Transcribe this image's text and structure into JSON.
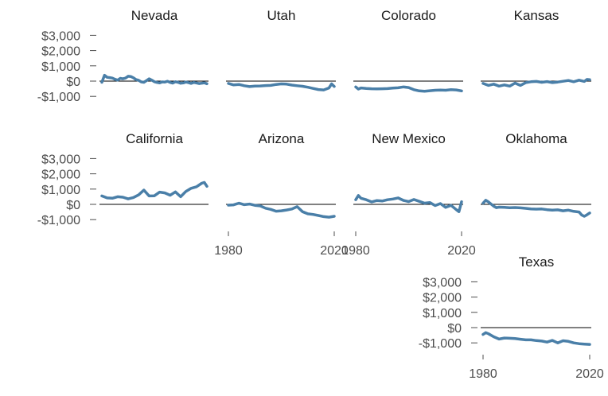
{
  "chart_data": {
    "type": "line",
    "layout": "small-multiples",
    "y_tick_labels": [
      "$3,000",
      "$2,000",
      "$1,000",
      "$0",
      "-$1,000"
    ],
    "y_ticks": [
      3000,
      2000,
      1000,
      0,
      -1000
    ],
    "ylim": [
      -1500,
      3200
    ],
    "x_tick_labels": [
      "1980",
      "2020"
    ],
    "x_ticks": [
      1980,
      2020
    ],
    "xlim": [
      1980,
      2020
    ],
    "zero_line": true,
    "colors": {
      "series": "#4a7fa8",
      "zero_line": "#000000",
      "axis": "#4d4d4d"
    },
    "panels": [
      {
        "title": "Nevada",
        "x": [
          1980,
          1981,
          1982,
          1983,
          1984,
          1985,
          1986,
          1987,
          1988,
          1989,
          1990,
          1991,
          1992,
          1993,
          1994,
          1995,
          1996,
          1997,
          1998,
          1999,
          2000,
          2001,
          2002,
          2003,
          2004,
          2005,
          2006,
          2007,
          2008,
          2009,
          2010,
          2011,
          2012,
          2013,
          2014,
          2015,
          2016,
          2017,
          2018,
          2019,
          2020
        ],
        "y": [
          -80,
          380,
          250,
          230,
          200,
          120,
          60,
          180,
          150,
          200,
          320,
          300,
          220,
          100,
          50,
          -50,
          -80,
          30,
          150,
          60,
          -40,
          -90,
          -120,
          -50,
          -60,
          -10,
          -90,
          -130,
          -40,
          -80,
          -140,
          -120,
          -60,
          -100,
          -150,
          -90,
          -120,
          -160,
          -140,
          -110,
          -170
        ]
      },
      {
        "title": "Utah",
        "x": [
          1980,
          1982,
          1984,
          1986,
          1988,
          1990,
          1992,
          1994,
          1996,
          1998,
          2000,
          2002,
          2004,
          2006,
          2008,
          2010,
          2012,
          2014,
          2016,
          2018,
          2019,
          2020
        ],
        "y": [
          -150,
          -250,
          -220,
          -300,
          -360,
          -330,
          -320,
          -290,
          -280,
          -220,
          -180,
          -200,
          -260,
          -300,
          -340,
          -400,
          -480,
          -550,
          -580,
          -450,
          -180,
          -350
        ]
      },
      {
        "title": "Colorado",
        "x": [
          1980,
          1981,
          1982,
          1984,
          1986,
          1988,
          1990,
          1992,
          1994,
          1996,
          1998,
          2000,
          2002,
          2004,
          2006,
          2008,
          2010,
          2012,
          2014,
          2016,
          2018,
          2020
        ],
        "y": [
          -380,
          -520,
          -450,
          -480,
          -500,
          -510,
          -500,
          -490,
          -460,
          -440,
          -380,
          -420,
          -560,
          -640,
          -660,
          -630,
          -600,
          -590,
          -600,
          -560,
          -580,
          -640
        ]
      },
      {
        "title": "Kansas",
        "x": [
          1980,
          1982,
          1984,
          1986,
          1988,
          1990,
          1992,
          1994,
          1996,
          1998,
          2000,
          2002,
          2004,
          2006,
          2008,
          2010,
          2012,
          2014,
          2016,
          2018,
          2019,
          2020
        ],
        "y": [
          -150,
          -280,
          -200,
          -330,
          -250,
          -330,
          -130,
          -280,
          -100,
          -40,
          -20,
          -80,
          -30,
          -100,
          -60,
          -10,
          40,
          -40,
          60,
          -20,
          110,
          90
        ]
      },
      {
        "title": "California",
        "x": [
          1980,
          1982,
          1984,
          1986,
          1988,
          1990,
          1992,
          1994,
          1996,
          1998,
          2000,
          2002,
          2004,
          2006,
          2008,
          2010,
          2012,
          2014,
          2016,
          2018,
          2019,
          2020
        ],
        "y": [
          550,
          420,
          400,
          500,
          470,
          360,
          450,
          620,
          930,
          550,
          560,
          800,
          750,
          600,
          820,
          500,
          850,
          1050,
          1150,
          1380,
          1440,
          1180
        ]
      },
      {
        "title": "Arizona",
        "x": [
          1980,
          1982,
          1984,
          1986,
          1988,
          1990,
          1992,
          1994,
          1996,
          1998,
          2000,
          2002,
          2004,
          2006,
          2008,
          2010,
          2012,
          2014,
          2016,
          2018,
          2020
        ],
        "y": [
          -50,
          -30,
          80,
          -20,
          20,
          -60,
          -100,
          -250,
          -330,
          -450,
          -420,
          -370,
          -300,
          -150,
          -480,
          -620,
          -660,
          -730,
          -800,
          -840,
          -780
        ]
      },
      {
        "title": "New Mexico",
        "x": [
          1980,
          1981,
          1982,
          1984,
          1986,
          1988,
          1990,
          1992,
          1994,
          1996,
          1998,
          2000,
          2002,
          2004,
          2006,
          2008,
          2010,
          2012,
          2014,
          2016,
          2018,
          2019,
          2020
        ],
        "y": [
          300,
          580,
          400,
          300,
          160,
          250,
          220,
          300,
          350,
          420,
          260,
          180,
          320,
          200,
          80,
          120,
          -80,
          50,
          -200,
          -60,
          -350,
          -480,
          170
        ]
      },
      {
        "title": "Oklahoma",
        "x": [
          1980,
          1981,
          1982,
          1984,
          1985,
          1986,
          1988,
          1990,
          1992,
          1994,
          1996,
          1998,
          2000,
          2002,
          2004,
          2006,
          2008,
          2010,
          2012,
          2014,
          2016,
          2017,
          2018,
          2019,
          2020
        ],
        "y": [
          80,
          270,
          160,
          -120,
          -220,
          -180,
          -200,
          -220,
          -210,
          -230,
          -260,
          -300,
          -310,
          -300,
          -350,
          -380,
          -360,
          -420,
          -380,
          -460,
          -500,
          -700,
          -780,
          -680,
          -560
        ]
      },
      {
        "title": "Texas",
        "x": [
          1980,
          1981,
          1982,
          1984,
          1986,
          1988,
          1990,
          1992,
          1994,
          1996,
          1998,
          2000,
          2002,
          2004,
          2006,
          2008,
          2010,
          2012,
          2014,
          2016,
          2018,
          2020
        ],
        "y": [
          -450,
          -330,
          -400,
          -600,
          -750,
          -680,
          -700,
          -720,
          -760,
          -800,
          -800,
          -850,
          -880,
          -950,
          -840,
          -1000,
          -860,
          -900,
          -1000,
          -1050,
          -1080,
          -1100
        ]
      }
    ]
  }
}
